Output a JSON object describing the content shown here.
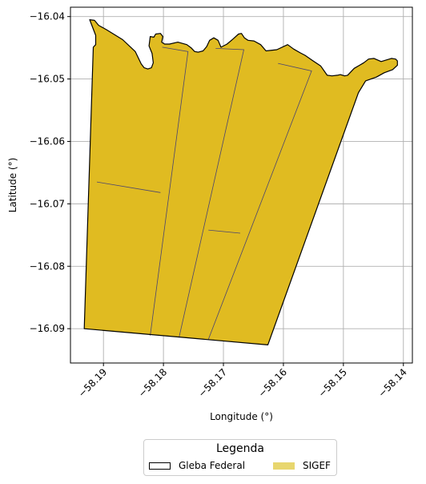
{
  "chart_data": {
    "type": "map",
    "xlabel": "Longitude (°)",
    "ylabel": "Latitude (°)",
    "xlim": [
      -58.1955,
      -58.1385
    ],
    "ylim": [
      -16.0955,
      -16.0385
    ],
    "grid": true,
    "xticks": [
      {
        "value": -58.19,
        "label": "−58.19"
      },
      {
        "value": -58.18,
        "label": "−58.18"
      },
      {
        "value": -58.17,
        "label": "−58.17"
      },
      {
        "value": -58.16,
        "label": "−58.16"
      },
      {
        "value": -58.15,
        "label": "−58.15"
      },
      {
        "value": -58.14,
        "label": "−58.14"
      }
    ],
    "yticks": [
      {
        "value": -16.04,
        "label": "−16.04"
      },
      {
        "value": -16.05,
        "label": "−16.05"
      },
      {
        "value": -16.06,
        "label": "−16.06"
      },
      {
        "value": -16.07,
        "label": "−16.07"
      },
      {
        "value": -16.08,
        "label": "−16.08"
      },
      {
        "value": -16.09,
        "label": "−16.09"
      }
    ],
    "outline": [
      [
        -58.1923,
        -16.0405
      ],
      [
        -58.1915,
        -16.0406
      ],
      [
        -58.1908,
        -16.0414
      ],
      [
        -58.1895,
        -16.0421
      ],
      [
        -58.1868,
        -16.0437
      ],
      [
        -58.1847,
        -16.0456
      ],
      [
        -58.1837,
        -16.0476
      ],
      [
        -58.1832,
        -16.0482
      ],
      [
        -58.1826,
        -16.0484
      ],
      [
        -58.182,
        -16.0482
      ],
      [
        -58.1817,
        -16.0474
      ],
      [
        -58.1819,
        -16.0459
      ],
      [
        -58.1824,
        -16.0447
      ],
      [
        -58.1822,
        -16.0432
      ],
      [
        -58.1816,
        -16.0433
      ],
      [
        -58.1813,
        -16.0428
      ],
      [
        -58.1805,
        -16.0427
      ],
      [
        -58.1801,
        -16.0432
      ],
      [
        -58.1803,
        -16.0441
      ],
      [
        -58.1798,
        -16.0444
      ],
      [
        -58.179,
        -16.0444
      ],
      [
        -58.1776,
        -16.0441
      ],
      [
        -58.1761,
        -16.0445
      ],
      [
        -58.1754,
        -16.045
      ],
      [
        -58.1748,
        -16.0456
      ],
      [
        -58.1742,
        -16.0457
      ],
      [
        -58.1734,
        -16.0455
      ],
      [
        -58.1728,
        -16.0448
      ],
      [
        -58.1723,
        -16.0438
      ],
      [
        -58.1716,
        -16.0434
      ],
      [
        -58.1709,
        -16.0438
      ],
      [
        -58.1704,
        -16.0449
      ],
      [
        -58.1694,
        -16.0444
      ],
      [
        -58.1684,
        -16.0436
      ],
      [
        -58.1675,
        -16.0428
      ],
      [
        -58.167,
        -16.0427
      ],
      [
        -58.1665,
        -16.0434
      ],
      [
        -58.1659,
        -16.0438
      ],
      [
        -58.1649,
        -16.0439
      ],
      [
        -58.1638,
        -16.0445
      ],
      [
        -58.1629,
        -16.0455
      ],
      [
        -58.1611,
        -16.0453
      ],
      [
        -58.1593,
        -16.0445
      ],
      [
        -58.1583,
        -16.0452
      ],
      [
        -58.1572,
        -16.0458
      ],
      [
        -58.1564,
        -16.0462
      ],
      [
        -58.1552,
        -16.047
      ],
      [
        -58.1538,
        -16.0479
      ],
      [
        -58.1527,
        -16.0494
      ],
      [
        -58.1519,
        -16.0495
      ],
      [
        -58.151,
        -16.0494
      ],
      [
        -58.1505,
        -16.0493
      ],
      [
        -58.1498,
        -16.0495
      ],
      [
        -58.1493,
        -16.0494
      ],
      [
        -58.1482,
        -16.0483
      ],
      [
        -58.1473,
        -16.0478
      ],
      [
        -58.1466,
        -16.0474
      ],
      [
        -58.1458,
        -16.0468
      ],
      [
        -58.1449,
        -16.0467
      ],
      [
        -58.1437,
        -16.0472
      ],
      [
        -58.143,
        -16.047
      ],
      [
        -58.142,
        -16.0467
      ],
      [
        -58.1413,
        -16.0468
      ],
      [
        -58.141,
        -16.0471
      ],
      [
        -58.141,
        -16.0478
      ],
      [
        -58.1418,
        -16.0485
      ],
      [
        -58.1432,
        -16.049
      ],
      [
        -58.1445,
        -16.0497
      ],
      [
        -58.1463,
        -16.0503
      ],
      [
        -58.1475,
        -16.0522
      ],
      [
        -58.1626,
        -16.0926
      ],
      [
        -58.1932,
        -16.09
      ],
      [
        -58.1917,
        -16.0449
      ],
      [
        -58.1913,
        -16.0445
      ],
      [
        -58.1913,
        -16.043
      ],
      [
        -58.1923,
        -16.0405
      ]
    ],
    "divisions": [
      [
        [
          -58.1911,
          -16.0665
        ],
        [
          -58.1805,
          -16.0682
        ]
      ],
      [
        [
          -58.1802,
          -16.0449
        ],
        [
          -58.1759,
          -16.0456
        ],
        [
          -58.1822,
          -16.0911
        ]
      ],
      [
        [
          -58.1713,
          -16.0451
        ],
        [
          -58.1666,
          -16.0453
        ],
        [
          -58.1774,
          -16.0914
        ]
      ],
      [
        [
          -58.1609,
          -16.0475
        ],
        [
          -58.1553,
          -16.0487
        ],
        [
          -58.1725,
          -16.0917
        ]
      ],
      [
        [
          -58.1725,
          -16.0742
        ],
        [
          -58.1672,
          -16.0747
        ]
      ]
    ],
    "legend": {
      "title": "Legenda",
      "entries": [
        {
          "label": "Gleba Federal",
          "fill": "none",
          "edge": "#000000"
        },
        {
          "label": "SIGEF",
          "fill": "#e8d66e",
          "edge": "none"
        }
      ],
      "placement": "bottom-center"
    },
    "colors": {
      "sigef_fill": "#e0bb21",
      "outline": "#000000",
      "division": "#4a4470",
      "grid": "#b0b0b0"
    }
  }
}
